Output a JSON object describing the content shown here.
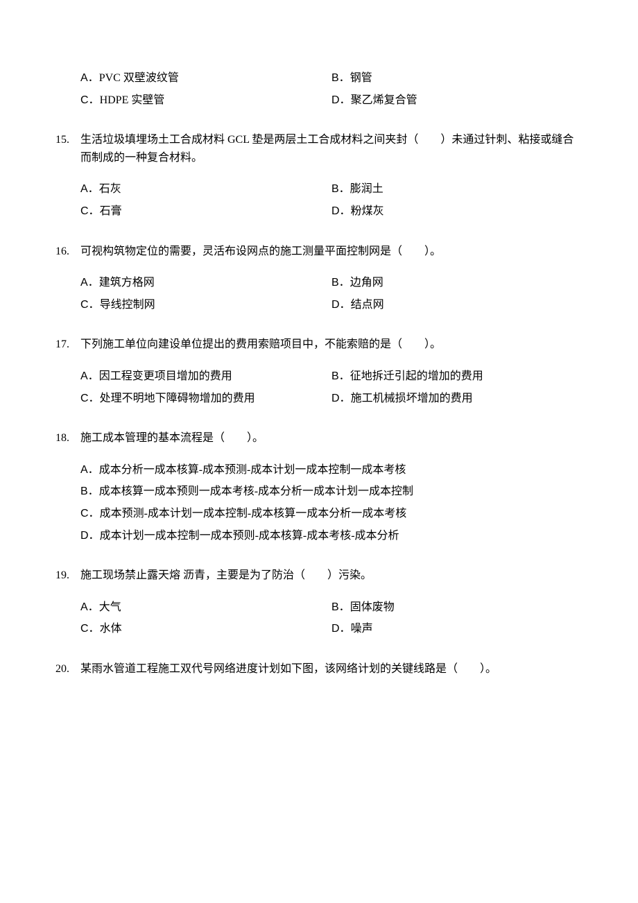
{
  "questions": [
    {
      "number": "",
      "text": "",
      "options_layout": "two-col",
      "options": [
        {
          "label": "A．",
          "text": "PVC 双壁波纹管"
        },
        {
          "label": "B．",
          "text": "钢管"
        },
        {
          "label": "C．",
          "text": "HDPE 实壁管"
        },
        {
          "label": "D．",
          "text": "聚乙烯复合管"
        }
      ]
    },
    {
      "number": "15.",
      "text": "生活垃圾填埋场土工合成材料 GCL 垫是两层土工合成材料之间夹封（　　）未通过针刺、粘接或缝合而制成的一种复合材料。",
      "options_layout": "two-col",
      "options": [
        {
          "label": "A．",
          "text": "石灰"
        },
        {
          "label": "B．",
          "text": "膨润土"
        },
        {
          "label": "C．",
          "text": "石膏"
        },
        {
          "label": "D．",
          "text": "粉煤灰"
        }
      ]
    },
    {
      "number": "16.",
      "text": "可视构筑物定位的需要，灵活布设网点的施工测量平面控制网是（　　）。",
      "options_layout": "two-col",
      "options": [
        {
          "label": "A．",
          "text": "建筑方格网"
        },
        {
          "label": "B．",
          "text": "边角网"
        },
        {
          "label": "C．",
          "text": "导线控制网"
        },
        {
          "label": "D．",
          "text": "结点网"
        }
      ]
    },
    {
      "number": "17.",
      "text": "下列施工单位向建设单位提出的费用索赔项目中，不能索赔的是（　　）。",
      "options_layout": "two-col",
      "options": [
        {
          "label": "A．",
          "text": "因工程变更项目增加的费用"
        },
        {
          "label": "B．",
          "text": "征地拆迁引起的增加的费用"
        },
        {
          "label": "C．",
          "text": "处理不明地下障碍物增加的费用"
        },
        {
          "label": "D．",
          "text": "施工机械损坏增加的费用"
        }
      ]
    },
    {
      "number": "18.",
      "text": "施工成本管理的基本流程是（　　）。",
      "options_layout": "one-col",
      "options": [
        {
          "label": "A．",
          "text": "成本分析一成本核算-成本预测-成本计划一成本控制一成本考核"
        },
        {
          "label": "B．",
          "text": "成本核算一成本预则一成本考核-成本分析一成本计划一成本控制"
        },
        {
          "label": "C．",
          "text": "成本预测-成本计划一成本控制-成本核算一成本分析一成本考核"
        },
        {
          "label": "D．",
          "text": "成本计划一成本控制一成本预则-成本核算-成本考核-成本分析"
        }
      ]
    },
    {
      "number": "19.",
      "text": "施工现场禁止露天熔 沥青，主要是为了防治（　　）污染。",
      "options_layout": "two-col",
      "options": [
        {
          "label": "A．",
          "text": "大气"
        },
        {
          "label": "B．",
          "text": "固体废物"
        },
        {
          "label": "C．",
          "text": "水体"
        },
        {
          "label": "D．",
          "text": "噪声"
        }
      ]
    },
    {
      "number": "20.",
      "text": "某雨水管道工程施工双代号网络进度计划如下图，该网络计划的关键线路是（　　）。",
      "options_layout": "none",
      "options": []
    }
  ]
}
